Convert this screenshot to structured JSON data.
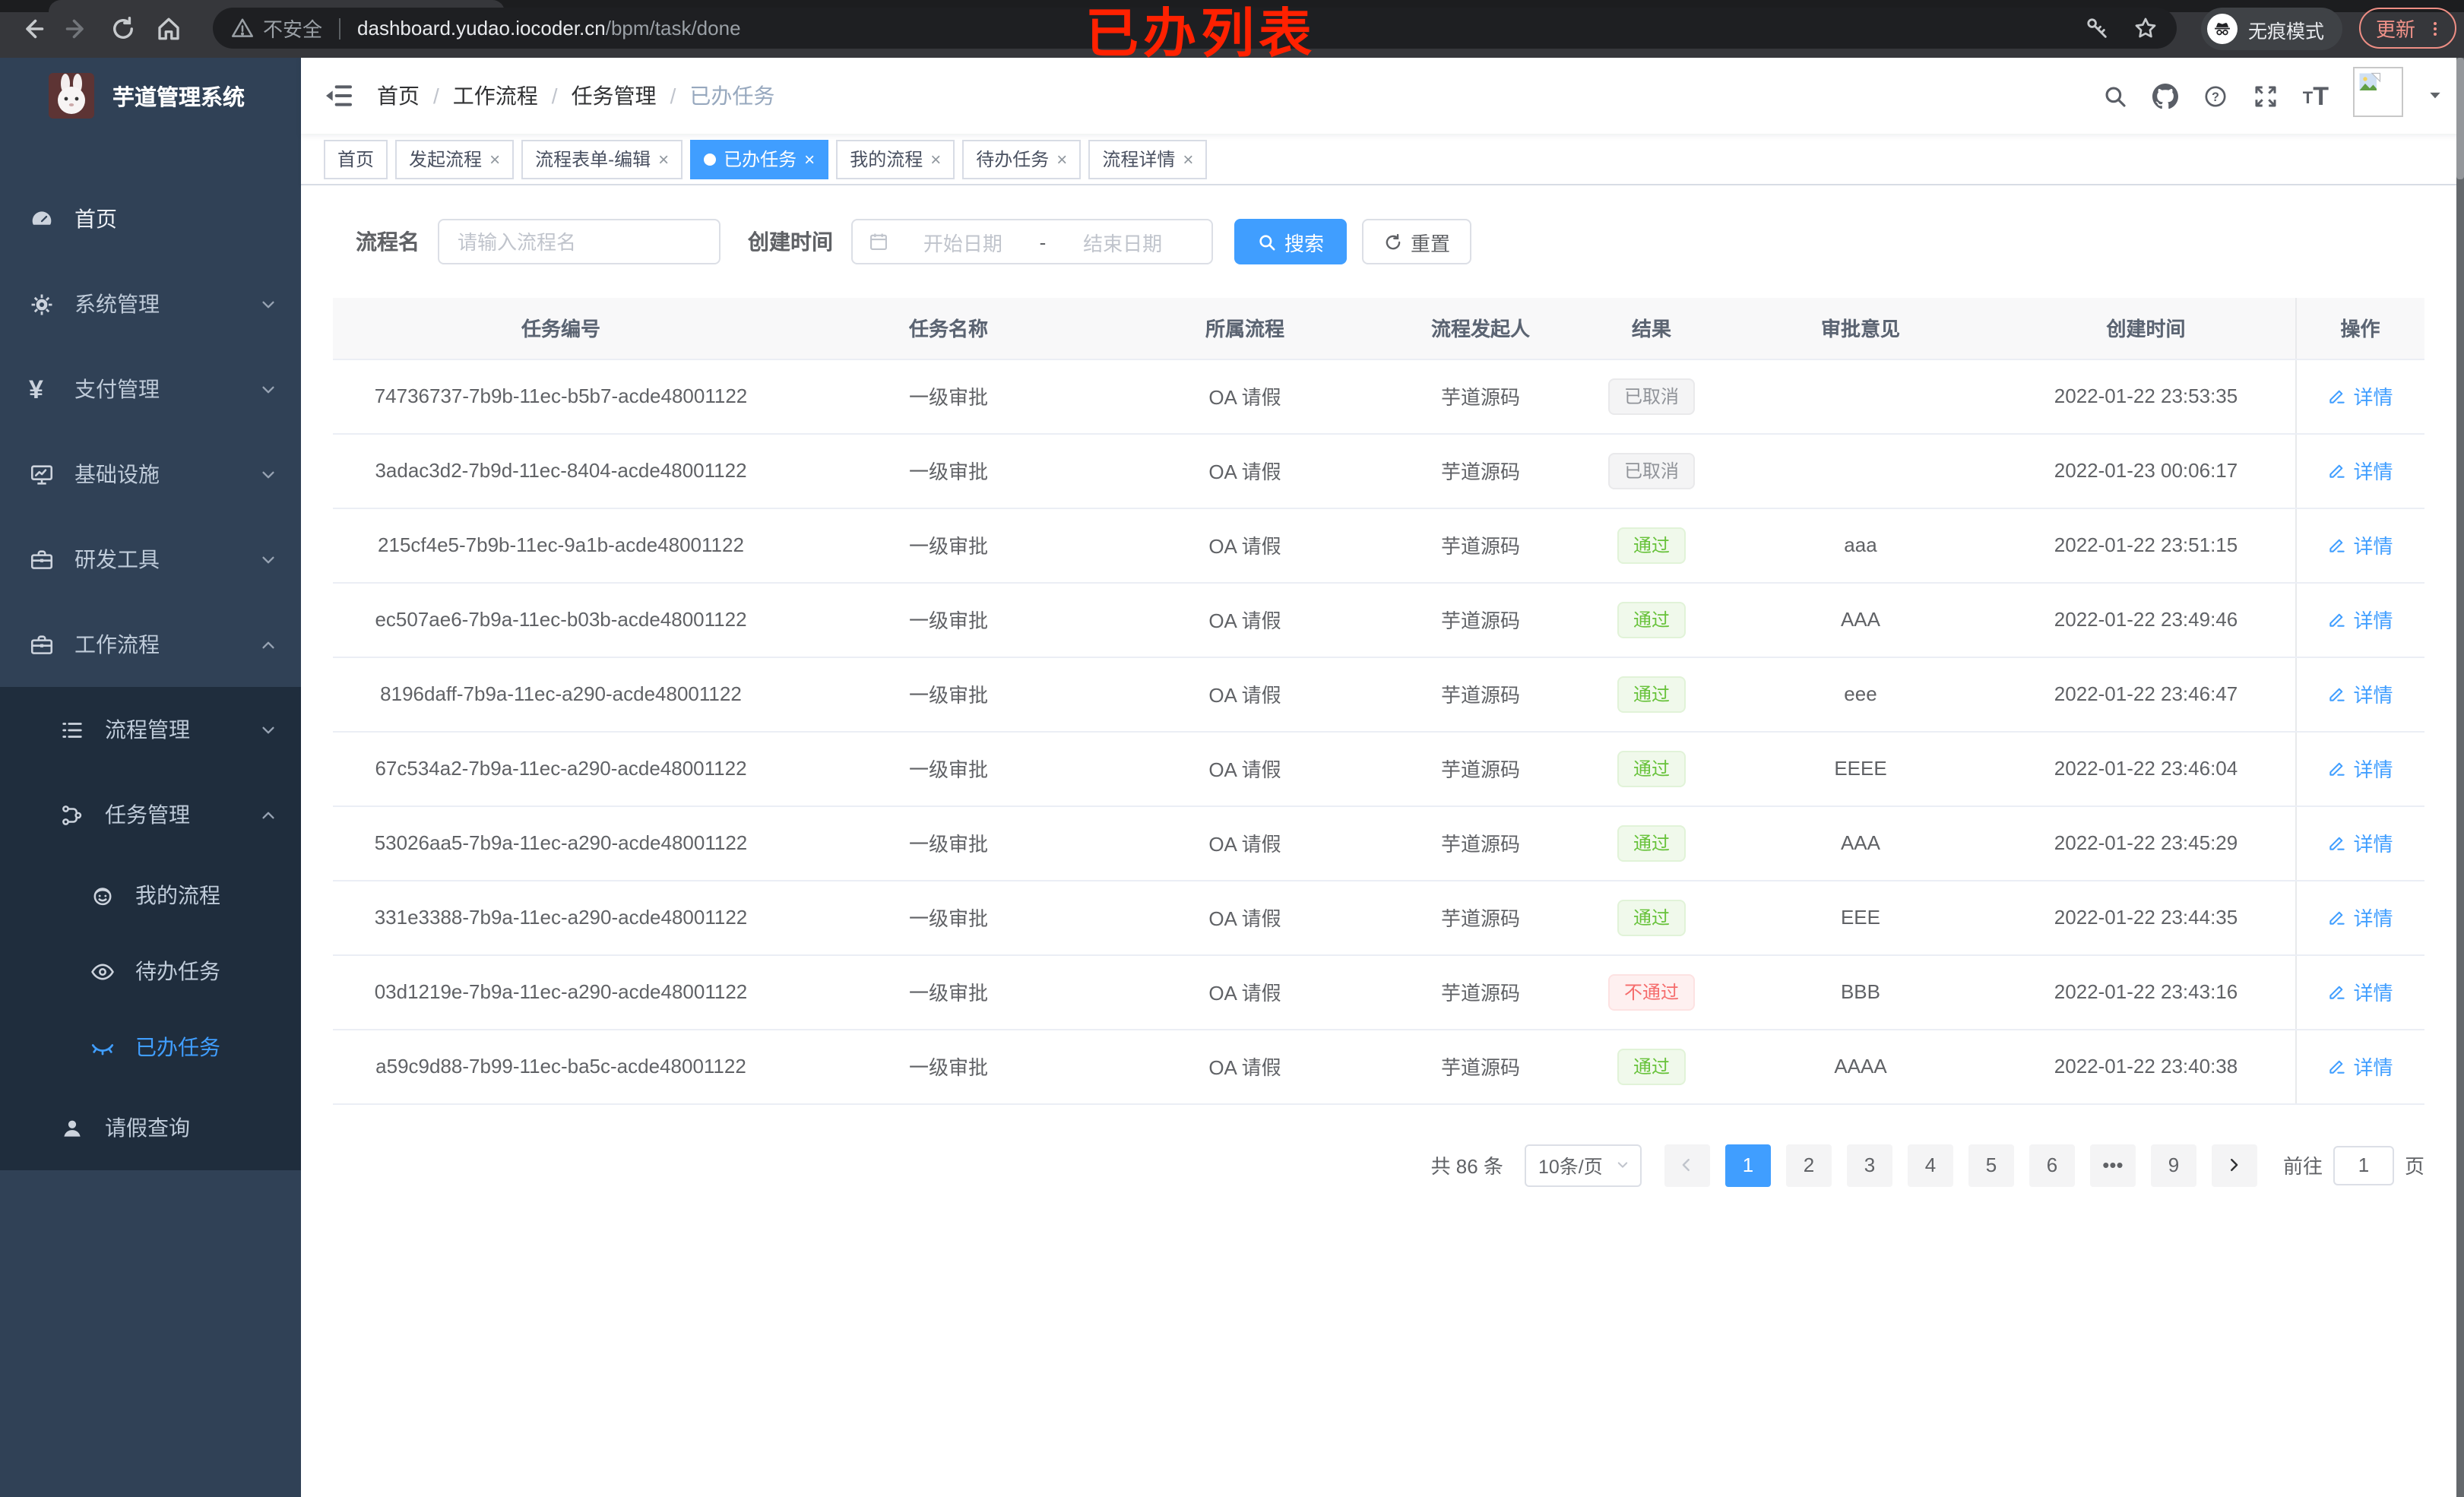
{
  "browser": {
    "security_label": "不安全",
    "url_host": "dashboard.yudao.iocoder.cn",
    "url_path": "/bpm/task/done",
    "incognito_label": "无痕模式",
    "update_label": "更新"
  },
  "annotation": {
    "text": "已办列表",
    "color": "#ff2100"
  },
  "sidebar": {
    "logo_title": "芋道管理系统",
    "menu": [
      {
        "key": "home",
        "icon": "dashboard-icon",
        "label": "首页",
        "level": 1,
        "bright": true
      },
      {
        "key": "system",
        "icon": "gear-icon",
        "label": "系统管理",
        "level": 1,
        "chevron": "down"
      },
      {
        "key": "payment",
        "icon": "yen-icon",
        "label": "支付管理",
        "level": 1,
        "chevron": "down"
      },
      {
        "key": "infrastructure",
        "icon": "monitor-icon",
        "label": "基础设施",
        "level": 1,
        "chevron": "down"
      },
      {
        "key": "devtools",
        "icon": "briefcase-icon",
        "label": "研发工具",
        "level": 1,
        "chevron": "down"
      },
      {
        "key": "workflow",
        "icon": "briefcase-icon",
        "label": "工作流程",
        "level": 1,
        "chevron": "up",
        "expanded": true,
        "children": [
          {
            "key": "process-mgmt",
            "icon": "list-icon",
            "label": "流程管理",
            "level": 2,
            "chevron": "down"
          },
          {
            "key": "task-mgmt",
            "icon": "flow-icon",
            "label": "任务管理",
            "level": 2,
            "chevron": "up",
            "expanded": true,
            "children": [
              {
                "key": "my-process",
                "icon": "robot-icon",
                "label": "我的流程",
                "level": 3
              },
              {
                "key": "todo-tasks",
                "icon": "eye-icon",
                "label": "待办任务",
                "level": 3
              },
              {
                "key": "done-tasks",
                "icon": "eye-closed-icon",
                "label": "已办任务",
                "level": 3,
                "active": true
              }
            ]
          },
          {
            "key": "leave-query",
            "icon": "user-icon",
            "label": "请假查询",
            "level": 2
          }
        ]
      }
    ]
  },
  "navbar": {
    "breadcrumb": [
      "首页",
      "工作流程",
      "任务管理",
      "已办任务"
    ]
  },
  "tabs": [
    {
      "key": "home",
      "label": "首页"
    },
    {
      "key": "start-process",
      "label": "发起流程",
      "closable": true
    },
    {
      "key": "form-edit",
      "label": "流程表单-编辑",
      "closable": true
    },
    {
      "key": "done-tasks",
      "label": "已办任务",
      "closable": true,
      "active": true
    },
    {
      "key": "my-process",
      "label": "我的流程",
      "closable": true
    },
    {
      "key": "todo-tasks",
      "label": "待办任务",
      "closable": true
    },
    {
      "key": "process-detail",
      "label": "流程详情",
      "closable": true
    }
  ],
  "filter": {
    "name_label": "流程名",
    "name_placeholder": "请输入流程名",
    "name_value": "",
    "time_label": "创建时间",
    "start_placeholder": "开始日期",
    "range_separator": "-",
    "end_placeholder": "结束日期",
    "search_label": "搜索",
    "reset_label": "重置"
  },
  "table": {
    "columns": [
      "任务编号",
      "任务名称",
      "所属流程",
      "流程发起人",
      "结果",
      "审批意见",
      "创建时间",
      "操作"
    ],
    "action_label": "详情",
    "rows": [
      {
        "id": "74736737-7b9b-11ec-b5b7-acde48001122",
        "name": "一级审批",
        "process": "OA 请假",
        "starter": "芋道源码",
        "result": "已取消",
        "result_type": "info",
        "opinion": "",
        "time": "2022-01-22 23:53:35"
      },
      {
        "id": "3adac3d2-7b9d-11ec-8404-acde48001122",
        "name": "一级审批",
        "process": "OA 请假",
        "starter": "芋道源码",
        "result": "已取消",
        "result_type": "info",
        "opinion": "",
        "time": "2022-01-23 00:06:17"
      },
      {
        "id": "215cf4e5-7b9b-11ec-9a1b-acde48001122",
        "name": "一级审批",
        "process": "OA 请假",
        "starter": "芋道源码",
        "result": "通过",
        "result_type": "success",
        "opinion": "aaa",
        "time": "2022-01-22 23:51:15"
      },
      {
        "id": "ec507ae6-7b9a-11ec-b03b-acde48001122",
        "name": "一级审批",
        "process": "OA 请假",
        "starter": "芋道源码",
        "result": "通过",
        "result_type": "success",
        "opinion": "AAA",
        "time": "2022-01-22 23:49:46"
      },
      {
        "id": "8196daff-7b9a-11ec-a290-acde48001122",
        "name": "一级审批",
        "process": "OA 请假",
        "starter": "芋道源码",
        "result": "通过",
        "result_type": "success",
        "opinion": "eee",
        "time": "2022-01-22 23:46:47"
      },
      {
        "id": "67c534a2-7b9a-11ec-a290-acde48001122",
        "name": "一级审批",
        "process": "OA 请假",
        "starter": "芋道源码",
        "result": "通过",
        "result_type": "success",
        "opinion": "EEEE",
        "time": "2022-01-22 23:46:04"
      },
      {
        "id": "53026aa5-7b9a-11ec-a290-acde48001122",
        "name": "一级审批",
        "process": "OA 请假",
        "starter": "芋道源码",
        "result": "通过",
        "result_type": "success",
        "opinion": "AAA",
        "time": "2022-01-22 23:45:29"
      },
      {
        "id": "331e3388-7b9a-11ec-a290-acde48001122",
        "name": "一级审批",
        "process": "OA 请假",
        "starter": "芋道源码",
        "result": "通过",
        "result_type": "success",
        "opinion": "EEE",
        "time": "2022-01-22 23:44:35"
      },
      {
        "id": "03d1219e-7b9a-11ec-a290-acde48001122",
        "name": "一级审批",
        "process": "OA 请假",
        "starter": "芋道源码",
        "result": "不通过",
        "result_type": "danger",
        "opinion": "BBB",
        "time": "2022-01-22 23:43:16"
      },
      {
        "id": "a59c9d88-7b99-11ec-ba5c-acde48001122",
        "name": "一级审批",
        "process": "OA 请假",
        "starter": "芋道源码",
        "result": "通过",
        "result_type": "success",
        "opinion": "AAAA",
        "time": "2022-01-22 23:40:38"
      }
    ]
  },
  "pagination": {
    "total_label": "共 86 条",
    "page_size": "10条/页",
    "pages": [
      "1",
      "2",
      "3",
      "4",
      "5",
      "6",
      "•••",
      "9"
    ],
    "active_page": "1",
    "jump_label": "前往",
    "jump_value": "1",
    "jump_suffix": "页"
  },
  "colors": {
    "accent": "#409eff",
    "sidebar_bg": "#304156",
    "submenu_bg": "#1f2d3d",
    "success": "#67c23a",
    "danger": "#f56c6c",
    "info": "#909399",
    "annotation_red": "#ff2100"
  }
}
